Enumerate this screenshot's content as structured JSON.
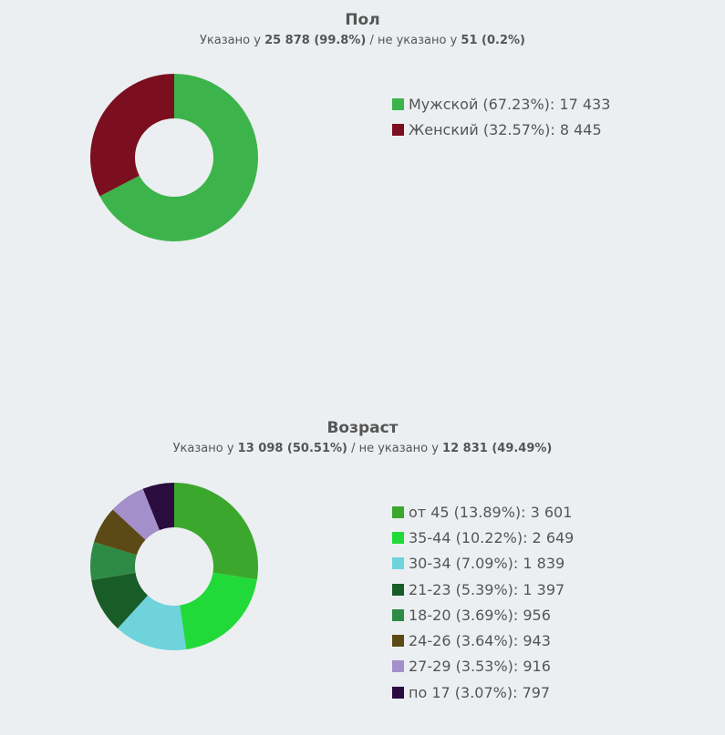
{
  "chart_data": [
    {
      "type": "pie",
      "title": "Пол",
      "subtitle": {
        "prefix": "Указано у ",
        "specified": "25 878 (99.8%)",
        "middle": " / не указано у ",
        "unspecified": "51 (0.2%)"
      },
      "slices": [
        {
          "label": "Мужской (67.23%): 17 433",
          "value": 17433,
          "percent": 67.23,
          "color": "#3cb44b"
        },
        {
          "label": "Женский (32.57%): 8 445",
          "value": 8445,
          "percent": 32.57,
          "color": "#7b0f1f"
        }
      ]
    },
    {
      "type": "pie",
      "title": "Возраст",
      "subtitle": {
        "prefix": "Указано у ",
        "specified": "13 098 (50.51%)",
        "middle": " / не указано у ",
        "unspecified": "12 831 (49.49%)"
      },
      "slices": [
        {
          "label": "от 45 (13.89%): 3 601",
          "value": 3601,
          "percent": 13.89,
          "color": "#3ba82d"
        },
        {
          "label": "35-44 (10.22%): 2 649",
          "value": 2649,
          "percent": 10.22,
          "color": "#22d93a"
        },
        {
          "label": "30-34 (7.09%): 1 839",
          "value": 1839,
          "percent": 7.09,
          "color": "#6fd3dc"
        },
        {
          "label": "21-23 (5.39%): 1 397",
          "value": 1397,
          "percent": 5.39,
          "color": "#185c28"
        },
        {
          "label": "18-20 (3.69%): 956",
          "value": 956,
          "percent": 3.69,
          "color": "#2e8b45"
        },
        {
          "label": "24-26 (3.64%): 943",
          "value": 943,
          "percent": 3.64,
          "color": "#5b4a15"
        },
        {
          "label": "27-29 (3.53%): 916",
          "value": 916,
          "percent": 3.53,
          "color": "#a38fc9"
        },
        {
          "label": "по 17 (3.07%): 797",
          "value": 797,
          "percent": 3.07,
          "color": "#2b0c3e"
        }
      ]
    }
  ]
}
